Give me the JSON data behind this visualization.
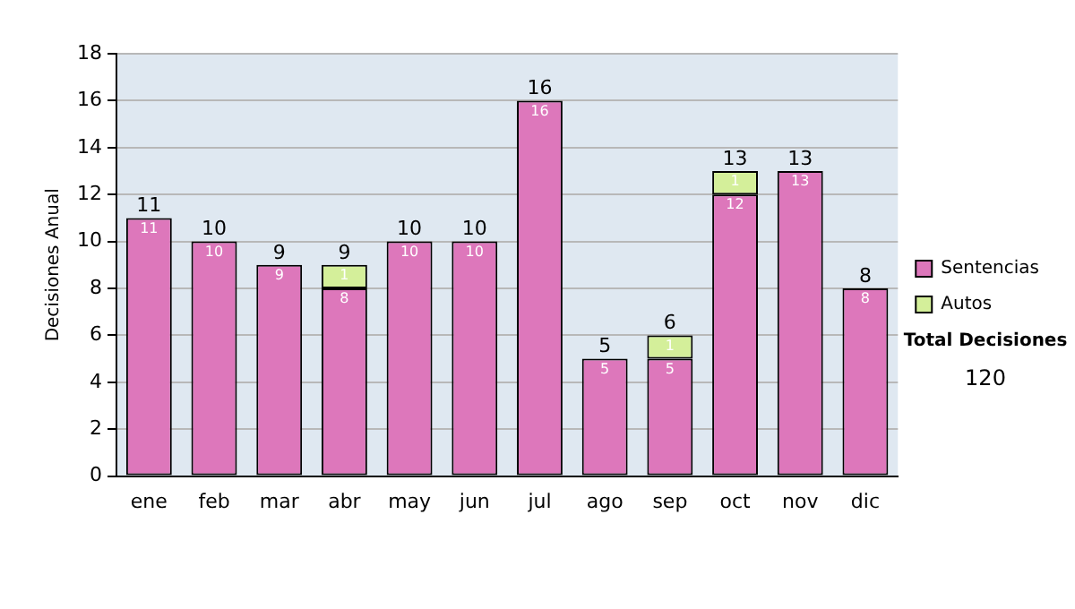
{
  "chart_data": {
    "type": "bar",
    "stacked": true,
    "ylabel": "Decisiones Anual",
    "categories": [
      "ene",
      "feb",
      "mar",
      "abr",
      "may",
      "jun",
      "jul",
      "ago",
      "sep",
      "oct",
      "nov",
      "dic"
    ],
    "series": [
      {
        "name": "Sentencias",
        "color": "#dd77bb",
        "values": [
          11,
          10,
          9,
          8,
          10,
          10,
          16,
          5,
          5,
          12,
          13,
          8
        ],
        "value_labels": [
          "11",
          "10",
          "9",
          "8",
          "10",
          "10",
          "16",
          "5",
          "5",
          "12",
          "13",
          "8"
        ]
      },
      {
        "name": "Autos",
        "color": "#d4ef9a",
        "values": [
          0,
          0,
          0,
          1,
          0,
          0,
          0,
          0,
          1,
          1,
          0,
          0
        ],
        "value_labels": [
          null,
          null,
          null,
          "1",
          null,
          null,
          null,
          null,
          "1",
          "1",
          null,
          null
        ]
      }
    ],
    "totals": [
      "11",
      "10",
      "9",
      "9",
      "10",
      "10",
      "16",
      "5",
      "6",
      "13",
      "13",
      "8"
    ],
    "ylim": [
      0,
      18
    ],
    "yticks": [
      0,
      2,
      4,
      6,
      8,
      10,
      12,
      14,
      16,
      18
    ],
    "grid": "y",
    "legend": "right",
    "annotations": [
      "Total Decisiones",
      "120"
    ]
  }
}
